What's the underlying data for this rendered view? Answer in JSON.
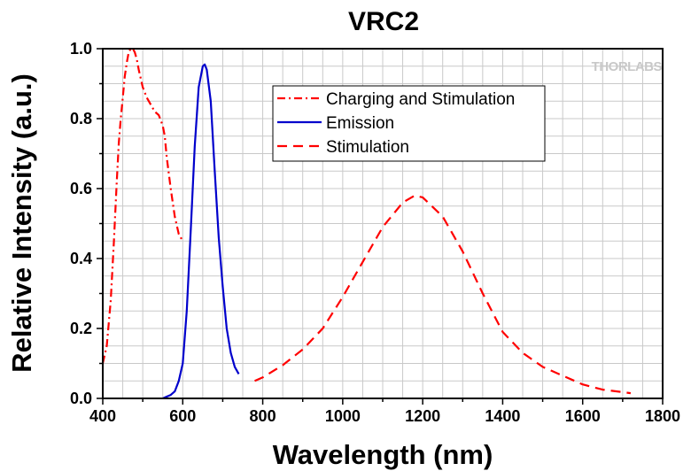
{
  "chart_data": {
    "type": "line",
    "title": "VRC2",
    "xlabel": "Wavelength (nm)",
    "ylabel": "Relative Intensity (a.u.)",
    "xlim": [
      400,
      1800
    ],
    "ylim": [
      0,
      1.0
    ],
    "xticks": [
      400,
      600,
      800,
      1000,
      1200,
      1400,
      1600,
      1800
    ],
    "yticks": [
      0.0,
      0.2,
      0.4,
      0.6,
      0.8,
      1.0
    ],
    "xtick_labels": [
      "400",
      "600",
      "800",
      "1000",
      "1200",
      "1400",
      "1600",
      "1800"
    ],
    "ytick_labels": [
      "0.0",
      "0.2",
      "0.4",
      "0.6",
      "0.8",
      "1.0"
    ],
    "grid": true,
    "legend_position": "top-center",
    "watermark": "THORLABS",
    "series": [
      {
        "name": "Charging and Stimulation",
        "color": "#ff0000",
        "style": "dash-dot",
        "x": [
          400,
          410,
          420,
          428,
          435,
          440,
          445,
          450,
          455,
          460,
          465,
          470,
          475,
          480,
          485,
          490,
          500,
          510,
          520,
          530,
          540,
          550,
          555,
          560,
          570,
          580,
          590,
          600
        ],
        "y": [
          0.1,
          0.15,
          0.28,
          0.45,
          0.62,
          0.73,
          0.8,
          0.86,
          0.92,
          0.96,
          0.99,
          1.0,
          1.0,
          0.99,
          0.97,
          0.94,
          0.89,
          0.86,
          0.84,
          0.82,
          0.81,
          0.78,
          0.75,
          0.69,
          0.6,
          0.52,
          0.47,
          0.45
        ]
      },
      {
        "name": "Emission",
        "color": "#0000cc",
        "style": "solid",
        "x": [
          550,
          560,
          570,
          580,
          590,
          600,
          610,
          620,
          630,
          640,
          650,
          655,
          660,
          670,
          680,
          690,
          700,
          710,
          720,
          730,
          740
        ],
        "y": [
          0.0,
          0.005,
          0.01,
          0.02,
          0.05,
          0.1,
          0.25,
          0.48,
          0.72,
          0.89,
          0.95,
          0.955,
          0.94,
          0.85,
          0.65,
          0.46,
          0.32,
          0.2,
          0.13,
          0.09,
          0.07
        ]
      },
      {
        "name": "Stimulation",
        "color": "#ff0000",
        "style": "dash",
        "x": [
          780,
          800,
          850,
          900,
          950,
          1000,
          1050,
          1100,
          1150,
          1180,
          1200,
          1250,
          1300,
          1350,
          1400,
          1450,
          1500,
          1550,
          1600,
          1650,
          1700,
          1720
        ],
        "y": [
          0.05,
          0.06,
          0.095,
          0.14,
          0.2,
          0.29,
          0.39,
          0.49,
          0.56,
          0.58,
          0.575,
          0.52,
          0.42,
          0.3,
          0.19,
          0.13,
          0.09,
          0.065,
          0.04,
          0.025,
          0.018,
          0.015
        ]
      }
    ]
  }
}
